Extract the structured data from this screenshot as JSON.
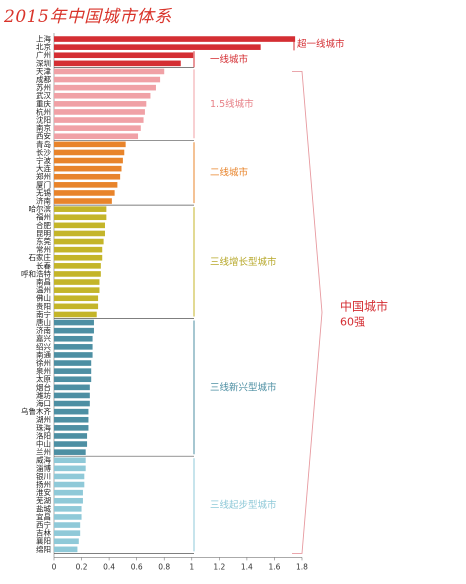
{
  "chart_data": {
    "type": "bar",
    "orientation": "horizontal",
    "title": "2015年中国城市体系",
    "xlim": [
      0,
      1.8
    ],
    "xticks": [
      "0",
      "0.2",
      "0.4",
      "0.6",
      "0.8",
      "1",
      "1.2",
      "1.4",
      "1.6",
      "1.8"
    ],
    "groups": [
      {
        "label": "超一线城市",
        "color": "#d42e33",
        "label_color": "#d42e33",
        "cities": [
          "上海",
          "北京",
          "广州",
          "深圳"
        ],
        "values": [
          1.75,
          1.5,
          1.01,
          0.92
        ]
      },
      {
        "label": "一线城市",
        "color": "#d42e33",
        "label_color": "#d42e33",
        "cities": [],
        "values": []
      },
      {
        "label": "1.5线城市",
        "color": "#f0a1a6",
        "label_color": "#e78087",
        "cities": [
          "天津",
          "成都",
          "苏州",
          "武汉",
          "重庆",
          "杭州",
          "沈阳",
          "南京",
          "西安"
        ],
        "values": [
          0.8,
          0.77,
          0.74,
          0.7,
          0.67,
          0.66,
          0.65,
          0.63,
          0.61
        ]
      },
      {
        "label": "二线城市",
        "color": "#e8842b",
        "label_color": "#e8842b",
        "cities": [
          "青岛",
          "长沙",
          "宁波",
          "大连",
          "郑州",
          "厦门",
          "无锡",
          "济南"
        ],
        "values": [
          0.52,
          0.51,
          0.5,
          0.49,
          0.48,
          0.46,
          0.44,
          0.42
        ]
      },
      {
        "label": "三线增长型城市",
        "color": "#c4b52a",
        "label_color": "#b7a82a",
        "cities": [
          "哈尔滨",
          "福州",
          "合肥",
          "昆明",
          "东莞",
          "常州",
          "石家庄",
          "长春",
          "呼和浩特",
          "南昌",
          "温州",
          "佛山",
          "贵阳",
          "南宁"
        ],
        "values": [
          0.38,
          0.38,
          0.37,
          0.37,
          0.36,
          0.35,
          0.35,
          0.34,
          0.34,
          0.33,
          0.33,
          0.32,
          0.32,
          0.31
        ]
      },
      {
        "label": "三线新兴型城市",
        "color": "#4d8fa3",
        "label_color": "#4d8fa3",
        "cities": [
          "唐山",
          "济南",
          "嘉兴",
          "绍兴",
          "南通",
          "徐州",
          "泉州",
          "太原",
          "烟台",
          "潍坊",
          "海口",
          "乌鲁木齐",
          "湖州",
          "珠海",
          "洛阳",
          "中山",
          "兰州"
        ],
        "values": [
          0.29,
          0.29,
          0.28,
          0.28,
          0.28,
          0.27,
          0.27,
          0.27,
          0.26,
          0.26,
          0.26,
          0.25,
          0.25,
          0.25,
          0.24,
          0.24,
          0.23
        ]
      },
      {
        "label": "三线起步型城市",
        "color": "#8fc9d8",
        "label_color": "#8fc9d8",
        "cities": [
          "威海",
          "淄博",
          "银川",
          "扬州",
          "淮安",
          "芜湖",
          "盐城",
          "宜昌",
          "西宁",
          "吉林",
          "襄阳",
          "绵阳"
        ],
        "values": [
          0.23,
          0.23,
          0.22,
          0.22,
          0.21,
          0.21,
          0.2,
          0.2,
          0.19,
          0.19,
          0.18,
          0.17
        ]
      }
    ],
    "summary_label": "中国城市",
    "summary_sublabel": "60强",
    "summary_color": "#d42e33"
  }
}
